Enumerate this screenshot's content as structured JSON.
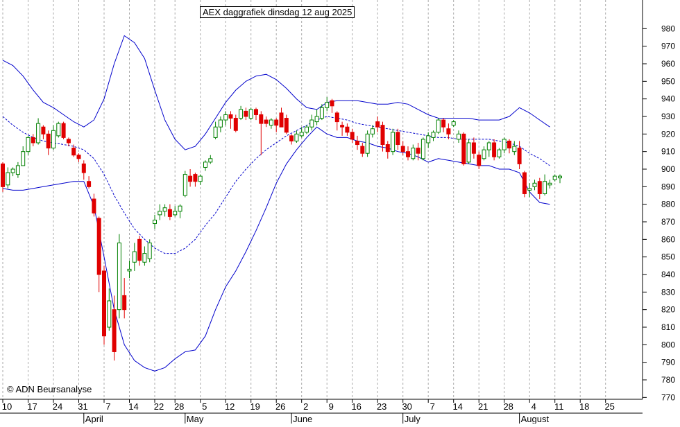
{
  "chart_data": {
    "type": "candlestick",
    "title": "AEX daggrafiek dinsdag 12 aug 2025",
    "copyright": "© ADN Beursanalyse",
    "ylim": [
      765,
      990
    ],
    "yticks": [
      770,
      780,
      790,
      800,
      810,
      820,
      830,
      840,
      850,
      860,
      870,
      880,
      890,
      900,
      910,
      920,
      930,
      940,
      950,
      960,
      970,
      980
    ],
    "xlim": [
      0,
      132
    ],
    "xtick_labels": [
      {
        "label": "10",
        "x": 0
      },
      {
        "label": "17",
        "x": 5
      },
      {
        "label": "24",
        "x": 10
      },
      {
        "label": "31",
        "x": 15
      },
      {
        "label": "7",
        "x": 20
      },
      {
        "label": "14",
        "x": 25
      },
      {
        "label": "22",
        "x": 30
      },
      {
        "label": "28",
        "x": 34
      },
      {
        "label": "5",
        "x": 39
      },
      {
        "label": "12",
        "x": 44
      },
      {
        "label": "19",
        "x": 49
      },
      {
        "label": "26",
        "x": 54
      },
      {
        "label": "2",
        "x": 59
      },
      {
        "label": "9",
        "x": 64
      },
      {
        "label": "16",
        "x": 69
      },
      {
        "label": "23",
        "x": 74
      },
      {
        "label": "30",
        "x": 79
      },
      {
        "label": "7",
        "x": 84
      },
      {
        "label": "14",
        "x": 89
      },
      {
        "label": "21",
        "x": 94
      },
      {
        "label": "28",
        "x": 99
      },
      {
        "label": "4",
        "x": 104
      },
      {
        "label": "11",
        "x": 109
      },
      {
        "label": "18",
        "x": 114
      },
      {
        "label": "25",
        "x": 119
      }
    ],
    "month_labels": [
      {
        "label": "April",
        "x": 16
      },
      {
        "label": "May",
        "x": 36
      },
      {
        "label": "June",
        "x": 57
      },
      {
        "label": "July",
        "x": 79
      },
      {
        "label": "August",
        "x": 102
      }
    ],
    "candles": [
      [
        0,
        903,
        890,
        887,
        904
      ],
      [
        1,
        891,
        898,
        889,
        901
      ],
      [
        2,
        898,
        900,
        896,
        901
      ],
      [
        3,
        897,
        902,
        895,
        904
      ],
      [
        4,
        902,
        910,
        902,
        913
      ],
      [
        5,
        910,
        918,
        908,
        919
      ],
      [
        6,
        918,
        915,
        913,
        920
      ],
      [
        7,
        915,
        926,
        914,
        929
      ],
      [
        8,
        924,
        920,
        917,
        925
      ],
      [
        9,
        920,
        912,
        908,
        922
      ],
      [
        10,
        912,
        922,
        911,
        925
      ],
      [
        11,
        919,
        926,
        918,
        927
      ],
      [
        12,
        926,
        918,
        917,
        927
      ],
      [
        13,
        917,
        915,
        913,
        918
      ],
      [
        14,
        912,
        908,
        907,
        914
      ],
      [
        15,
        908,
        906,
        904,
        909
      ],
      [
        16,
        903,
        898,
        894,
        905
      ],
      [
        17,
        893,
        890,
        889,
        896
      ],
      [
        18,
        883,
        875,
        873,
        886
      ],
      [
        19,
        872,
        840,
        830,
        873
      ],
      [
        20,
        842,
        805,
        800,
        845
      ],
      [
        21,
        810,
        825,
        808,
        832
      ],
      [
        22,
        820,
        796,
        791,
        828
      ],
      [
        23,
        820,
        858,
        815,
        863
      ],
      [
        24,
        828,
        820,
        815,
        838
      ],
      [
        25,
        842,
        843,
        838,
        848
      ],
      [
        26,
        847,
        853,
        842,
        858
      ],
      [
        27,
        860,
        848,
        845,
        862
      ],
      [
        28,
        847,
        852,
        845,
        856
      ],
      [
        29,
        849,
        858,
        847,
        860
      ],
      [
        30,
        869,
        871,
        866,
        874
      ],
      [
        31,
        874,
        876,
        871,
        880
      ],
      [
        32,
        876,
        878,
        873,
        880
      ],
      [
        33,
        877,
        873,
        871,
        880
      ],
      [
        34,
        874,
        876,
        873,
        879
      ],
      [
        35,
        876,
        879,
        872,
        880
      ],
      [
        36,
        885,
        897,
        884,
        899
      ],
      [
        37,
        896,
        893,
        890,
        900
      ],
      [
        38,
        897,
        893,
        890,
        898
      ],
      [
        39,
        893,
        896,
        891,
        897
      ],
      [
        40,
        901,
        904,
        899,
        905
      ],
      [
        41,
        904,
        906,
        903,
        908
      ],
      [
        42,
        918,
        924,
        917,
        927
      ],
      [
        43,
        924,
        928,
        921,
        930
      ],
      [
        44,
        928,
        931,
        925,
        933
      ],
      [
        45,
        931,
        929,
        923,
        933
      ],
      [
        46,
        929,
        922,
        921,
        931
      ],
      [
        47,
        929,
        934,
        928,
        936
      ],
      [
        48,
        933,
        930,
        928,
        935
      ],
      [
        49,
        929,
        934,
        928,
        935
      ],
      [
        50,
        934,
        931,
        928,
        935
      ],
      [
        51,
        931,
        926,
        908,
        933
      ],
      [
        52,
        928,
        926,
        924,
        930
      ],
      [
        53,
        925,
        928,
        923,
        929
      ],
      [
        54,
        928,
        925,
        921,
        929
      ],
      [
        55,
        932,
        924,
        924,
        935
      ],
      [
        56,
        929,
        921,
        920,
        931
      ],
      [
        57,
        919,
        916,
        914,
        920
      ],
      [
        58,
        916,
        920,
        915,
        922
      ],
      [
        59,
        919,
        921,
        918,
        924
      ],
      [
        60,
        921,
        924,
        920,
        925
      ],
      [
        61,
        924,
        928,
        922,
        931
      ],
      [
        62,
        927,
        930,
        925,
        934
      ],
      [
        63,
        929,
        935,
        928,
        937
      ],
      [
        64,
        935,
        938,
        933,
        941
      ],
      [
        65,
        939,
        936,
        932,
        940
      ],
      [
        66,
        932,
        927,
        922,
        933
      ],
      [
        67,
        925,
        924,
        919,
        927
      ],
      [
        68,
        924,
        921,
        919,
        926
      ],
      [
        69,
        921,
        917,
        915,
        923
      ],
      [
        70,
        916,
        914,
        911,
        919
      ],
      [
        71,
        913,
        909,
        907,
        915
      ],
      [
        72,
        909,
        920,
        907,
        922
      ],
      [
        73,
        920,
        923,
        918,
        925
      ],
      [
        74,
        927,
        924,
        921,
        930
      ],
      [
        75,
        925,
        914,
        910,
        927
      ],
      [
        76,
        914,
        910,
        906,
        916
      ],
      [
        77,
        910,
        921,
        908,
        923
      ],
      [
        78,
        921,
        914,
        911,
        923
      ],
      [
        79,
        913,
        910,
        908,
        916
      ],
      [
        80,
        910,
        907,
        905,
        913
      ],
      [
        81,
        906,
        912,
        905,
        914
      ],
      [
        82,
        912,
        909,
        905,
        915
      ],
      [
        83,
        906,
        917,
        905,
        918
      ],
      [
        84,
        915,
        919,
        912,
        921
      ],
      [
        85,
        918,
        921,
        916,
        922
      ],
      [
        86,
        921,
        928,
        920,
        929
      ],
      [
        87,
        928,
        924,
        921,
        929
      ],
      [
        88,
        923,
        920,
        917,
        926
      ],
      [
        89,
        925,
        927,
        924,
        928
      ],
      [
        90,
        917,
        920,
        915,
        922
      ],
      [
        91,
        920,
        903,
        902,
        921
      ],
      [
        92,
        904,
        915,
        903,
        917
      ],
      [
        93,
        915,
        909,
        906,
        918
      ],
      [
        94,
        908,
        902,
        900,
        910
      ],
      [
        95,
        906,
        911,
        905,
        913
      ],
      [
        96,
        911,
        915,
        907,
        916
      ],
      [
        97,
        915,
        907,
        905,
        917
      ],
      [
        98,
        907,
        911,
        906,
        912
      ],
      [
        99,
        911,
        917,
        909,
        918
      ],
      [
        100,
        916,
        912,
        909,
        917
      ],
      [
        101,
        910,
        913,
        908,
        916
      ],
      [
        102,
        912,
        903,
        900,
        916
      ],
      [
        103,
        898,
        886,
        884,
        899
      ],
      [
        104,
        888,
        889,
        884,
        892
      ],
      [
        105,
        890,
        892,
        888,
        894
      ],
      [
        106,
        893,
        886,
        883,
        895
      ],
      [
        107,
        886,
        893,
        885,
        897
      ],
      [
        108,
        891,
        892,
        889,
        894
      ],
      [
        109,
        894,
        896,
        893,
        897
      ],
      [
        110,
        895,
        896,
        892,
        897
      ]
    ],
    "bollinger": {
      "upper": [
        [
          0,
          962
        ],
        [
          2,
          959
        ],
        [
          4,
          953
        ],
        [
          6,
          945
        ],
        [
          8,
          938
        ],
        [
          10,
          935
        ],
        [
          12,
          931
        ],
        [
          14,
          927
        ],
        [
          16,
          924
        ],
        [
          18,
          928
        ],
        [
          20,
          940
        ],
        [
          22,
          960
        ],
        [
          24,
          976
        ],
        [
          26,
          972
        ],
        [
          28,
          963
        ],
        [
          30,
          945
        ],
        [
          32,
          928
        ],
        [
          34,
          917
        ],
        [
          36,
          911
        ],
        [
          38,
          913
        ],
        [
          40,
          920
        ],
        [
          42,
          929
        ],
        [
          44,
          938
        ],
        [
          46,
          945
        ],
        [
          48,
          950
        ],
        [
          50,
          953
        ],
        [
          52,
          954
        ],
        [
          54,
          951
        ],
        [
          56,
          946
        ],
        [
          58,
          940
        ],
        [
          60,
          935
        ],
        [
          62,
          934
        ],
        [
          64,
          938
        ],
        [
          66,
          939
        ],
        [
          68,
          939
        ],
        [
          70,
          939
        ],
        [
          72,
          938
        ],
        [
          74,
          937
        ],
        [
          76,
          937
        ],
        [
          78,
          938
        ],
        [
          80,
          937
        ],
        [
          82,
          934
        ],
        [
          84,
          931
        ],
        [
          86,
          929
        ],
        [
          88,
          929
        ],
        [
          90,
          929
        ],
        [
          92,
          929
        ],
        [
          94,
          928
        ],
        [
          96,
          928
        ],
        [
          98,
          928
        ],
        [
          100,
          930
        ],
        [
          102,
          935
        ],
        [
          104,
          932
        ],
        [
          106,
          928
        ],
        [
          108,
          924
        ]
      ],
      "middle": [
        [
          0,
          930
        ],
        [
          2,
          925
        ],
        [
          4,
          921
        ],
        [
          6,
          918
        ],
        [
          8,
          916
        ],
        [
          10,
          915
        ],
        [
          12,
          914
        ],
        [
          14,
          913
        ],
        [
          16,
          911
        ],
        [
          18,
          906
        ],
        [
          20,
          897
        ],
        [
          22,
          885
        ],
        [
          24,
          875
        ],
        [
          26,
          866
        ],
        [
          28,
          860
        ],
        [
          30,
          855
        ],
        [
          32,
          852
        ],
        [
          34,
          852
        ],
        [
          36,
          855
        ],
        [
          38,
          860
        ],
        [
          40,
          868
        ],
        [
          42,
          875
        ],
        [
          44,
          884
        ],
        [
          46,
          893
        ],
        [
          48,
          900
        ],
        [
          50,
          906
        ],
        [
          52,
          911
        ],
        [
          54,
          915
        ],
        [
          56,
          919
        ],
        [
          58,
          922
        ],
        [
          60,
          925
        ],
        [
          62,
          928
        ],
        [
          64,
          930
        ],
        [
          66,
          929
        ],
        [
          68,
          928
        ],
        [
          70,
          926
        ],
        [
          72,
          925
        ],
        [
          74,
          924
        ],
        [
          76,
          923
        ],
        [
          78,
          922
        ],
        [
          80,
          921
        ],
        [
          82,
          920
        ],
        [
          84,
          919
        ],
        [
          86,
          918
        ],
        [
          88,
          918
        ],
        [
          90,
          917
        ],
        [
          92,
          917
        ],
        [
          94,
          917
        ],
        [
          96,
          917
        ],
        [
          98,
          916
        ],
        [
          100,
          915
        ],
        [
          102,
          913
        ],
        [
          104,
          909
        ],
        [
          106,
          906
        ],
        [
          108,
          902
        ]
      ],
      "lower": [
        [
          0,
          889
        ],
        [
          2,
          888
        ],
        [
          4,
          888
        ],
        [
          6,
          889
        ],
        [
          8,
          890
        ],
        [
          10,
          891
        ],
        [
          12,
          892
        ],
        [
          14,
          893
        ],
        [
          16,
          893
        ],
        [
          18,
          879
        ],
        [
          20,
          850
        ],
        [
          22,
          820
        ],
        [
          24,
          800
        ],
        [
          26,
          791
        ],
        [
          28,
          787
        ],
        [
          30,
          785
        ],
        [
          32,
          787
        ],
        [
          34,
          792
        ],
        [
          36,
          796
        ],
        [
          38,
          797
        ],
        [
          40,
          805
        ],
        [
          42,
          820
        ],
        [
          44,
          833
        ],
        [
          46,
          842
        ],
        [
          48,
          853
        ],
        [
          50,
          865
        ],
        [
          52,
          878
        ],
        [
          54,
          892
        ],
        [
          56,
          903
        ],
        [
          58,
          911
        ],
        [
          60,
          918
        ],
        [
          62,
          924
        ],
        [
          64,
          920
        ],
        [
          66,
          918
        ],
        [
          68,
          918
        ],
        [
          70,
          916
        ],
        [
          72,
          915
        ],
        [
          74,
          913
        ],
        [
          76,
          912
        ],
        [
          78,
          910
        ],
        [
          80,
          909
        ],
        [
          82,
          907
        ],
        [
          84,
          904
        ],
        [
          86,
          906
        ],
        [
          88,
          905
        ],
        [
          90,
          904
        ],
        [
          92,
          903
        ],
        [
          94,
          902
        ],
        [
          96,
          902
        ],
        [
          98,
          900
        ],
        [
          100,
          900
        ],
        [
          102,
          898
        ],
        [
          104,
          887
        ],
        [
          106,
          881
        ],
        [
          108,
          880
        ]
      ]
    },
    "colors": {
      "up": "#008000",
      "down": "#e00000",
      "band": "#0000cc",
      "grid": "#aaaaaa"
    }
  }
}
